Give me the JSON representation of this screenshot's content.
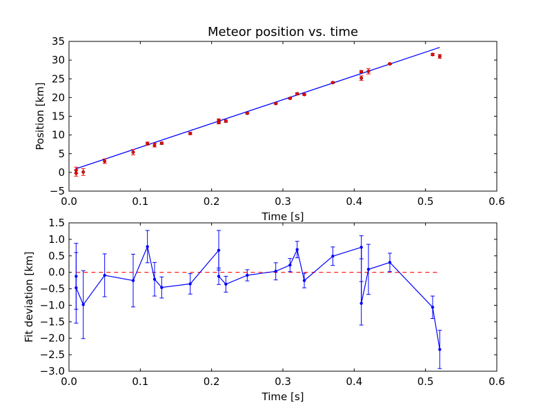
{
  "chart_data": [
    {
      "type": "scatter",
      "title": "Meteor position vs. time",
      "xlabel": "Time [s]",
      "ylabel": "Position [km]",
      "xlim": [
        0,
        0.6
      ],
      "ylim": [
        -5,
        35
      ],
      "xticks": [
        "0.0",
        "0.1",
        "0.2",
        "0.3",
        "0.4",
        "0.5",
        "0.6"
      ],
      "yticks": [
        "−5",
        "0",
        "5",
        "10",
        "15",
        "20",
        "25",
        "30",
        "35"
      ],
      "grid": false,
      "colors": {
        "points": "#ff0000",
        "fit": "#0000ff"
      },
      "points": [
        {
          "x": 0.01,
          "y": 0.6,
          "err": 0.8
        },
        {
          "x": 0.01,
          "y": -0.2,
          "err": 0.8
        },
        {
          "x": 0.02,
          "y": 0.1,
          "err": 0.9
        },
        {
          "x": 0.05,
          "y": 3.0,
          "err": 0.6
        },
        {
          "x": 0.09,
          "y": 5.4,
          "err": 0.7
        },
        {
          "x": 0.11,
          "y": 7.7,
          "err": 0.4
        },
        {
          "x": 0.12,
          "y": 7.3,
          "err": 0.5
        },
        {
          "x": 0.13,
          "y": 7.8,
          "err": 0.3
        },
        {
          "x": 0.17,
          "y": 10.4,
          "err": 0.3
        },
        {
          "x": 0.21,
          "y": 13.9,
          "err": 0.4
        },
        {
          "x": 0.21,
          "y": 13.3,
          "err": 0.3
        },
        {
          "x": 0.22,
          "y": 13.7,
          "err": 0.3
        },
        {
          "x": 0.25,
          "y": 15.8,
          "err": 0.2
        },
        {
          "x": 0.29,
          "y": 18.4,
          "err": 0.2
        },
        {
          "x": 0.31,
          "y": 19.8,
          "err": 0.2
        },
        {
          "x": 0.32,
          "y": 21.0,
          "err": 0.3
        },
        {
          "x": 0.33,
          "y": 20.8,
          "err": 0.2
        },
        {
          "x": 0.37,
          "y": 24.0,
          "err": 0.2
        },
        {
          "x": 0.41,
          "y": 26.9,
          "err": 0.3
        },
        {
          "x": 0.41,
          "y": 25.2,
          "err": 0.6
        },
        {
          "x": 0.42,
          "y": 27.0,
          "err": 0.7
        },
        {
          "x": 0.45,
          "y": 29.0,
          "err": 0.2
        },
        {
          "x": 0.51,
          "y": 31.5,
          "err": 0.3
        },
        {
          "x": 0.52,
          "y": 31.0,
          "err": 0.5
        }
      ],
      "fit_line": {
        "x": [
          0.01,
          0.52
        ],
        "y": [
          1.0,
          33.4
        ]
      }
    },
    {
      "type": "line",
      "xlabel": "Time [s]",
      "ylabel": "Fit deviation [km]",
      "xlim": [
        0,
        0.6
      ],
      "ylim": [
        -3.0,
        1.5
      ],
      "xticks": [
        "0.0",
        "0.1",
        "0.2",
        "0.3",
        "0.4",
        "0.5",
        "0.6"
      ],
      "yticks": [
        "−3.0",
        "−2.5",
        "−2.0",
        "−1.5",
        "−1.0",
        "−0.5",
        "0.0",
        "0.5",
        "1.0",
        "1.5"
      ],
      "grid": false,
      "colors": {
        "series": "#0000ff",
        "zero_line": "#ff0000"
      },
      "points": [
        {
          "x": 0.01,
          "y": -0.12,
          "err": 1.0
        },
        {
          "x": 0.01,
          "y": -0.47,
          "err": 1.07
        },
        {
          "x": 0.02,
          "y": -0.98,
          "err": 1.03
        },
        {
          "x": 0.05,
          "y": -0.09,
          "err": 0.65
        },
        {
          "x": 0.09,
          "y": -0.25,
          "err": 0.8
        },
        {
          "x": 0.11,
          "y": 0.78,
          "err": 0.49
        },
        {
          "x": 0.12,
          "y": -0.21,
          "err": 0.51
        },
        {
          "x": 0.13,
          "y": -0.46,
          "err": 0.32
        },
        {
          "x": 0.17,
          "y": -0.35,
          "err": 0.31
        },
        {
          "x": 0.21,
          "y": 0.67,
          "err": 0.6
        },
        {
          "x": 0.21,
          "y": -0.12,
          "err": 0.25
        },
        {
          "x": 0.22,
          "y": -0.36,
          "err": 0.24
        },
        {
          "x": 0.25,
          "y": -0.09,
          "err": 0.17
        },
        {
          "x": 0.29,
          "y": 0.03,
          "err": 0.26
        },
        {
          "x": 0.31,
          "y": 0.22,
          "err": 0.2
        },
        {
          "x": 0.32,
          "y": 0.69,
          "err": 0.25
        },
        {
          "x": 0.33,
          "y": -0.25,
          "err": 0.22
        },
        {
          "x": 0.37,
          "y": 0.49,
          "err": 0.28
        },
        {
          "x": 0.41,
          "y": 0.76,
          "err": 0.35
        },
        {
          "x": 0.41,
          "y": -0.94,
          "err": 0.66
        },
        {
          "x": 0.42,
          "y": 0.09,
          "err": 0.76
        },
        {
          "x": 0.45,
          "y": 0.3,
          "err": 0.28
        },
        {
          "x": 0.51,
          "y": -1.06,
          "err": 0.34
        },
        {
          "x": 0.52,
          "y": -2.34,
          "err": 0.58
        }
      ],
      "reference_line": {
        "y": 0,
        "x": [
          0.01,
          0.52
        ],
        "style": "dashed"
      }
    }
  ]
}
